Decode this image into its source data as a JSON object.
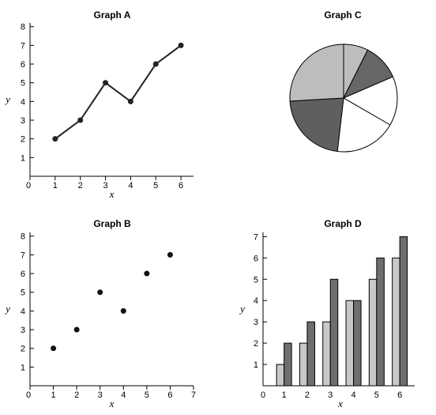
{
  "chart_data": [
    {
      "id": "A",
      "type": "line",
      "title": "Graph A",
      "xlabel": "x",
      "ylabel": "y",
      "xlim": [
        0,
        6.5
      ],
      "ylim": [
        0,
        8.2
      ],
      "xticks": [
        0,
        1,
        2,
        3,
        4,
        5,
        6
      ],
      "yticks": [
        1,
        2,
        3,
        4,
        5,
        6,
        7,
        8
      ],
      "x": [
        1,
        2,
        3,
        4,
        5,
        6
      ],
      "y": [
        2,
        3,
        5,
        4,
        6,
        7
      ],
      "grid": false,
      "markers": true,
      "color": "#222222"
    },
    {
      "id": "B",
      "type": "scatter",
      "title": "Graph B",
      "xlabel": "x",
      "ylabel": "y",
      "xlim": [
        0,
        7
      ],
      "ylim": [
        0,
        8.2
      ],
      "xticks": [
        0,
        1,
        2,
        3,
        4,
        5,
        6,
        7
      ],
      "yticks": [
        1,
        2,
        3,
        4,
        5,
        6,
        7,
        8
      ],
      "x": [
        1,
        2,
        3,
        4,
        5,
        6
      ],
      "y": [
        2,
        3,
        5,
        4,
        6,
        7
      ],
      "grid": false,
      "color": "#111111"
    },
    {
      "id": "C",
      "type": "pie",
      "title": "Graph C",
      "values": [
        2,
        3,
        4,
        5,
        6,
        7
      ],
      "colors": [
        "#bdbdbd",
        "#666666",
        "#ffffff",
        "#ffffff",
        "#5f5f5f",
        "#bdbdbd"
      ],
      "start": "top",
      "direction": "clockwise"
    },
    {
      "id": "D",
      "type": "bar",
      "title": "Graph D",
      "xlabel": "x",
      "ylabel": "y",
      "categories": [
        "1",
        "2",
        "3",
        "4",
        "5",
        "6"
      ],
      "xticks": [
        "0",
        "1",
        "2",
        "3",
        "4",
        "5",
        "6"
      ],
      "yticks": [
        1,
        2,
        3,
        4,
        5,
        6,
        7
      ],
      "ylim": [
        0,
        7.2
      ],
      "series": [
        {
          "values": [
            1,
            2,
            3,
            4,
            5,
            6
          ],
          "color": "#c8c8c8"
        },
        {
          "values": [
            2,
            3,
            5,
            4,
            6,
            7
          ],
          "color": "#6e6e6e"
        }
      ],
      "grid": false
    }
  ]
}
